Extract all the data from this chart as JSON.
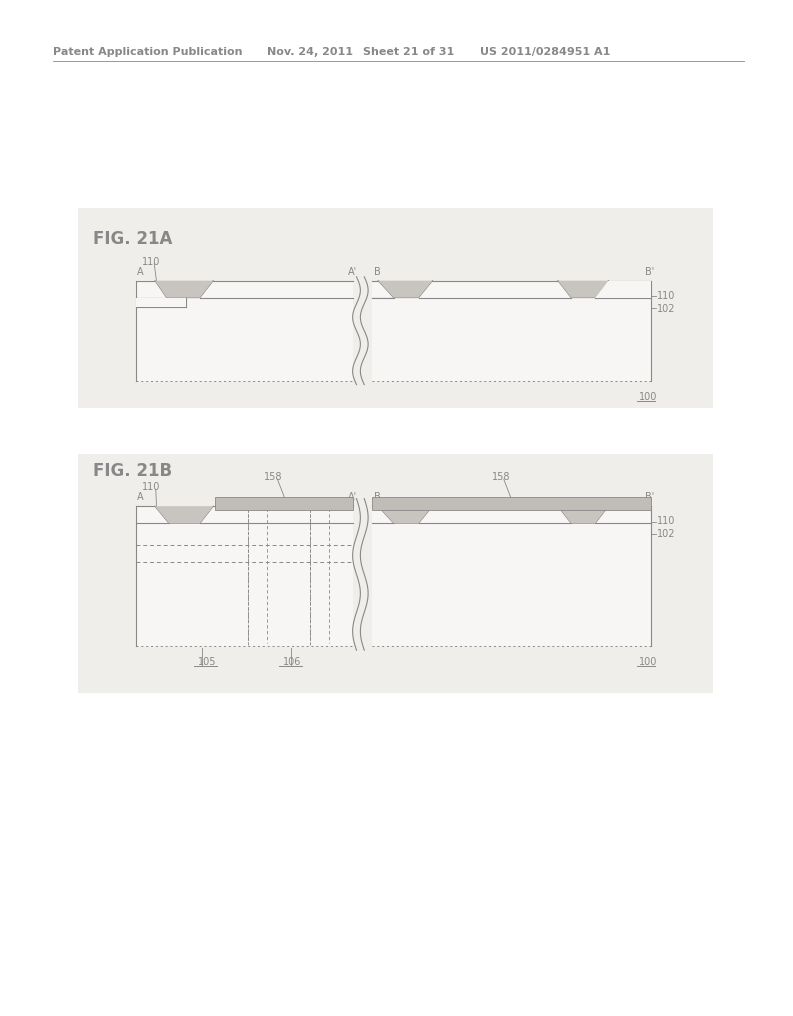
{
  "bg_color": "#ffffff",
  "page_bg": "#f0eeeb",
  "header_text": "Patent Application Publication",
  "header_date": "Nov. 24, 2011",
  "header_sheet": "Sheet 21 of 31",
  "header_patent": "US 2011/0284951 A1",
  "fig21a_label": "FIG. 21A",
  "fig21b_label": "FIG. 21B",
  "text_color": "#888888",
  "line_color": "#888888",
  "fill_substrate": "#e0dedd",
  "fill_trench": "#c8c4c0",
  "fill_layer158": "#c0bcb8",
  "fill_white": "#f8f6f4"
}
